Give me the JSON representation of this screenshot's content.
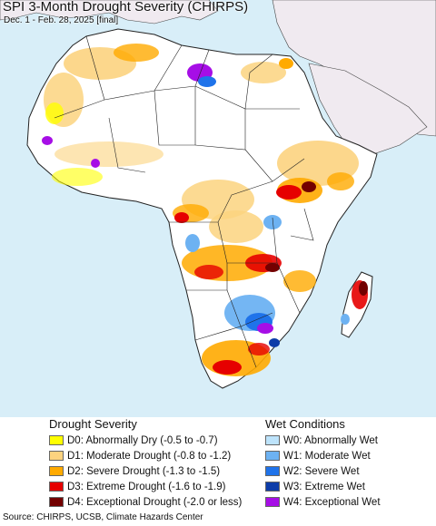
{
  "map": {
    "title": "SPI 3-Month Drought Severity (CHIRPS)",
    "subtitle": "Dec. 1 - Feb. 28, 2025 [final]",
    "colors": {
      "ocean": "#d8eef8",
      "land": "#ffffff",
      "masked_land": "#f0eaf0",
      "border": "#222222"
    }
  },
  "legend": {
    "drought": {
      "heading": "Drought Severity",
      "items": [
        {
          "label": "D0: Abnormally Dry (-0.5 to -0.7)",
          "color": "#ffff00"
        },
        {
          "label": "D1: Moderate Drought (-0.8 to -1.2)",
          "color": "#fcd37f"
        },
        {
          "label": "D2: Severe Drought (-1.3 to -1.5)",
          "color": "#ffaa00"
        },
        {
          "label": "D3: Extreme Drought (-1.6 to -1.9)",
          "color": "#e60000"
        },
        {
          "label": "D4: Exceptional Drought (-2.0 or less)",
          "color": "#730000"
        }
      ]
    },
    "wet": {
      "heading": "Wet Conditions",
      "items": [
        {
          "label": "W0: Abnormally Wet",
          "color": "#bde3fb"
        },
        {
          "label": "W1: Moderate Wet",
          "color": "#6db2f2"
        },
        {
          "label": "W2: Severe Wet",
          "color": "#1f73ea"
        },
        {
          "label": "W3: Extreme Wet",
          "color": "#0d3ca8"
        },
        {
          "label": "W4: Exceptional Wet",
          "color": "#a60ee6"
        }
      ]
    }
  },
  "footer": {
    "source": "Source: CHIRPS, UCSB, Climate Hazards Center"
  }
}
